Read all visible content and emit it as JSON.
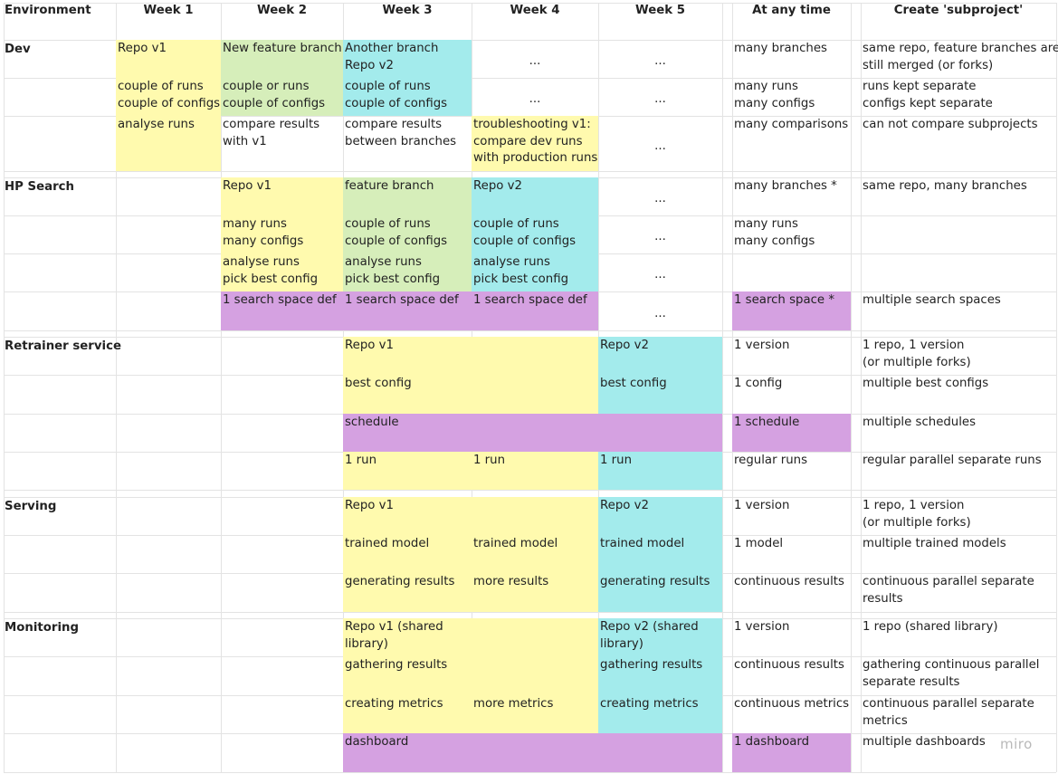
{
  "colors": {
    "yellow": "#fffaae",
    "green": "#d6eeba",
    "cyan": "#a3ebec",
    "purple": "#d5a1e1",
    "grid": "#e3e3e3"
  },
  "headers": [
    "Environment",
    "Week 1",
    "Week 2",
    "Week 3",
    "Week 4",
    "Week 5",
    "At any time",
    "Create 'subproject'"
  ],
  "ellipsis": "...",
  "sections": [
    {
      "name": "Dev",
      "rows": [
        {
          "week1": [
            "Repo v1"
          ],
          "week2": [
            "New feature branch"
          ],
          "week3": [
            "Another branch",
            "Repo v2"
          ],
          "week4": [
            "..."
          ],
          "week5": [
            "..."
          ],
          "any": [
            "many branches"
          ],
          "sub": [
            "same repo, feature branches are",
            "still merged (or forks)"
          ]
        },
        {
          "week1": [
            "couple of runs",
            "couple of configs"
          ],
          "week2": [
            "couple or runs",
            "couple of configs"
          ],
          "week3": [
            "couple of runs",
            "couple of configs"
          ],
          "week4": [
            "..."
          ],
          "week5": [
            "..."
          ],
          "any": [
            "many runs",
            "many configs"
          ],
          "sub": [
            "runs kept separate",
            "configs kept separate"
          ]
        },
        {
          "week1": [
            "analyse runs"
          ],
          "week2": [
            "compare results",
            "with v1"
          ],
          "week3": [
            "compare results",
            "between branches"
          ],
          "week4": [
            "troubleshooting v1:",
            "compare dev runs",
            "with production runs"
          ],
          "week5": [
            "..."
          ],
          "any": [
            "many comparisons"
          ],
          "sub": [
            "can not compare subprojects"
          ]
        }
      ]
    },
    {
      "name": "HP Search",
      "rows": [
        {
          "week2": [
            "Repo v1"
          ],
          "week3": [
            "feature branch"
          ],
          "week4": [
            "Repo v2"
          ],
          "week5": [
            "..."
          ],
          "any": [
            "many branches *"
          ],
          "sub": [
            "same repo, many branches"
          ]
        },
        {
          "week2": [
            "many runs",
            "many configs"
          ],
          "week3": [
            "couple of runs",
            "couple of configs"
          ],
          "week4": [
            "couple of runs",
            "couple of configs"
          ],
          "week5": [
            "..."
          ],
          "any": [
            "many runs",
            "many configs"
          ]
        },
        {
          "week2": [
            "analyse runs",
            "pick best config"
          ],
          "week3": [
            "analyse runs",
            "pick best config"
          ],
          "week4": [
            "analyse runs",
            "pick best config"
          ],
          "week5": [
            "..."
          ]
        },
        {
          "week2": [
            "1 search space def"
          ],
          "week3": [
            "1 search space def"
          ],
          "week4": [
            "1 search space def"
          ],
          "week5": [
            "..."
          ],
          "any": [
            "1 search space *"
          ],
          "sub": [
            "multiple search spaces"
          ]
        }
      ]
    },
    {
      "name": "Retrainer service",
      "rows": [
        {
          "week3": [
            "Repo v1"
          ],
          "week5": [
            "Repo v2"
          ],
          "any": [
            "1 version"
          ],
          "sub": [
            "1 repo, 1 version",
            "(or multiple forks)"
          ]
        },
        {
          "week3": [
            "best config"
          ],
          "week5": [
            "best config"
          ],
          "any": [
            "1 config"
          ],
          "sub": [
            "multiple best configs"
          ]
        },
        {
          "week3": [
            "schedule"
          ],
          "any": [
            "1 schedule"
          ],
          "sub": [
            "multiple schedules"
          ]
        },
        {
          "week3": [
            "1 run"
          ],
          "week4": [
            "1 run"
          ],
          "week5": [
            "1 run"
          ],
          "any": [
            "regular runs"
          ],
          "sub": [
            "regular parallel separate runs"
          ]
        }
      ]
    },
    {
      "name": "Serving",
      "rows": [
        {
          "week3": [
            "Repo v1"
          ],
          "week5": [
            "Repo v2"
          ],
          "any": [
            "1 version"
          ],
          "sub": [
            "1 repo, 1 version",
            "(or multiple forks)"
          ]
        },
        {
          "week3": [
            "trained model"
          ],
          "week4": [
            "trained model"
          ],
          "week5": [
            "trained model"
          ],
          "any": [
            "1 model"
          ],
          "sub": [
            "multiple trained models"
          ]
        },
        {
          "week3": [
            "generating results"
          ],
          "week4": [
            "more results"
          ],
          "week5": [
            "generating results"
          ],
          "any": [
            "continuous results"
          ],
          "sub": [
            "continuous parallel separate",
            "results"
          ]
        }
      ]
    },
    {
      "name": "Monitoring",
      "rows": [
        {
          "week3": [
            "Repo v1 (shared",
            "library)"
          ],
          "week5": [
            "Repo v2 (shared",
            "library)"
          ],
          "any": [
            "1 version"
          ],
          "sub": [
            "1 repo (shared library)"
          ]
        },
        {
          "week3": [
            "gathering results"
          ],
          "week5": [
            "gathering results"
          ],
          "any": [
            "continuous results"
          ],
          "sub": [
            "gathering continuous parallel",
            "separate results"
          ]
        },
        {
          "week3": [
            "creating metrics"
          ],
          "week4": [
            "more metrics"
          ],
          "week5": [
            "creating metrics"
          ],
          "any": [
            "continuous metrics"
          ],
          "sub": [
            "continuous parallel separate",
            "metrics"
          ]
        },
        {
          "week3": [
            "dashboard"
          ],
          "any": [
            "1 dashboard"
          ],
          "sub": [
            "multiple dashboards"
          ]
        }
      ]
    }
  ],
  "cell_colors": [
    [
      "yellow",
      "green",
      "cyan",
      null,
      null,
      null
    ],
    [
      "yellow",
      "green",
      "cyan",
      null,
      null,
      null
    ],
    [
      "yellow",
      null,
      null,
      "yellow",
      null,
      null
    ],
    [
      null,
      "yellow",
      "green",
      "cyan",
      null,
      null
    ],
    [
      null,
      "yellow",
      "green",
      "cyan",
      null,
      null
    ],
    [
      null,
      "yellow",
      "green",
      "cyan",
      null,
      null
    ],
    [
      null,
      "purple",
      "purple",
      "purple",
      null,
      "purple"
    ],
    [
      null,
      null,
      "yellow",
      "yellow",
      "cyan",
      null
    ],
    [
      null,
      null,
      "yellow",
      "yellow",
      "cyan",
      null
    ],
    [
      null,
      null,
      "purple",
      "purple",
      "purple",
      "purple"
    ],
    [
      null,
      null,
      "yellow",
      "yellow",
      "cyan",
      null
    ],
    [
      null,
      null,
      "yellow",
      "yellow",
      "cyan",
      null
    ],
    [
      null,
      null,
      "yellow",
      "yellow",
      "cyan",
      null
    ],
    [
      null,
      null,
      "yellow",
      "yellow",
      "cyan",
      null
    ],
    [
      null,
      null,
      "yellow",
      "yellow",
      "cyan",
      null
    ],
    [
      null,
      null,
      "yellow",
      "yellow",
      "cyan",
      null
    ],
    [
      null,
      null,
      "yellow",
      "yellow",
      "cyan",
      null
    ],
    [
      null,
      null,
      "purple",
      "purple",
      "purple",
      "purple"
    ]
  ],
  "watermark": "miro"
}
